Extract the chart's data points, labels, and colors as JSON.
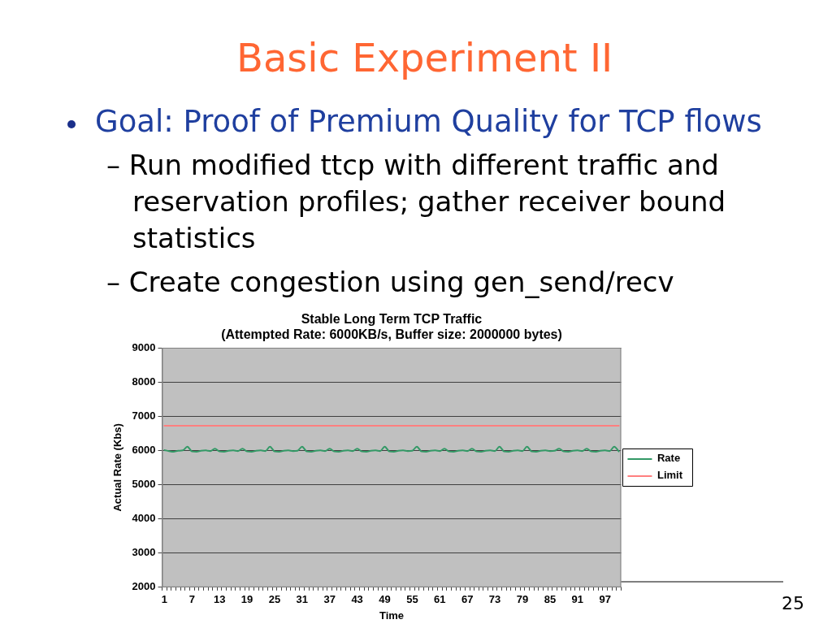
{
  "chart_data": {
    "type": "line",
    "title": "Stable Long Term TCP Traffic",
    "subtitle": "(Attempted Rate: 6000KB/s, Buffer size: 2000000 bytes)",
    "xlabel": "Time",
    "ylabel": "Actual Rate (Kbs)",
    "categories": [
      "1",
      null,
      null,
      null,
      null,
      null,
      "7",
      null,
      null,
      null,
      null,
      null,
      "13",
      null,
      null,
      null,
      null,
      null,
      "19",
      null,
      null,
      null,
      null,
      null,
      "25",
      null,
      null,
      null,
      null,
      null,
      "31",
      null,
      null,
      null,
      null,
      null,
      "37",
      null,
      null,
      null,
      null,
      null,
      "43",
      null,
      null,
      null,
      null,
      null,
      "49",
      null,
      null,
      null,
      null,
      null,
      "55",
      null,
      null,
      null,
      null,
      null,
      "61",
      null,
      null,
      null,
      null,
      null,
      "67",
      null,
      null,
      null,
      null,
      null,
      "73",
      null,
      null,
      null,
      null,
      null,
      "79",
      null,
      null,
      null,
      null,
      null,
      "85",
      null,
      null,
      null,
      null,
      null,
      "91",
      null,
      null,
      null,
      null,
      null,
      "97",
      null,
      null,
      null
    ],
    "series": [
      {
        "name": "Rate",
        "color": "#339966",
        "values": [
          6010,
          5980,
          5960,
          5990,
          6000,
          6110,
          5970,
          5960,
          5990,
          6000,
          5980,
          6050,
          5970,
          5960,
          5990,
          6000,
          5980,
          6050,
          5970,
          5960,
          5990,
          6000,
          5980,
          6110,
          5970,
          5960,
          5990,
          6000,
          5980,
          5990,
          6110,
          5970,
          5960,
          5990,
          6000,
          5980,
          6050,
          5970,
          5960,
          5990,
          6000,
          5980,
          6050,
          5970,
          5960,
          5990,
          6000,
          5980,
          6110,
          5970,
          5960,
          5990,
          6000,
          5980,
          5990,
          6110,
          5970,
          5960,
          5990,
          6000,
          5980,
          6050,
          5970,
          5960,
          5990,
          6000,
          5980,
          6050,
          5970,
          5960,
          5990,
          6000,
          5980,
          6110,
          5970,
          5960,
          5990,
          6000,
          5980,
          6110,
          5970,
          5960,
          5990,
          6000,
          5980,
          5990,
          6050,
          5970,
          5960,
          5990,
          6000,
          5980,
          6050,
          5970,
          5960,
          5990,
          6000,
          5980,
          6110,
          5970
        ]
      },
      {
        "name": "Limit",
        "color": "#ff8080",
        "values": [
          6720,
          6720,
          6720,
          6720,
          6720,
          6720,
          6720,
          6720,
          6720,
          6720,
          6720,
          6720,
          6720,
          6720,
          6720,
          6720,
          6720,
          6720,
          6720,
          6720,
          6720,
          6720,
          6720,
          6720,
          6720,
          6720,
          6720,
          6720,
          6720,
          6720,
          6720,
          6720,
          6720,
          6720,
          6720,
          6720,
          6720,
          6720,
          6720,
          6720,
          6720,
          6720,
          6720,
          6720,
          6720,
          6720,
          6720,
          6720,
          6720,
          6720,
          6720,
          6720,
          6720,
          6720,
          6720,
          6720,
          6720,
          6720,
          6720,
          6720,
          6720,
          6720,
          6720,
          6720,
          6720,
          6720,
          6720,
          6720,
          6720,
          6720,
          6720,
          6720,
          6720,
          6720,
          6720,
          6720,
          6720,
          6720,
          6720,
          6720,
          6720,
          6720,
          6720,
          6720,
          6720,
          6720,
          6720,
          6720,
          6720,
          6720,
          6720,
          6720,
          6720,
          6720,
          6720,
          6720,
          6720,
          6720,
          6720,
          6720
        ]
      }
    ],
    "ylim": [
      2000,
      9000
    ],
    "yticks": [
      2000,
      3000,
      4000,
      5000,
      6000,
      7000,
      8000,
      9000
    ],
    "grid": "y",
    "legend": "right",
    "marker": "none",
    "line_style": "solid",
    "annotations": [
      "Basic Experiment II",
      "Goal: Proof of Premium Quality for TCP flows",
      "– Run modified ttcp with different traffic and reservation profiles; gather receiver bound statistics",
      "– Create congestion using gen_send/recv",
      "25"
    ]
  }
}
